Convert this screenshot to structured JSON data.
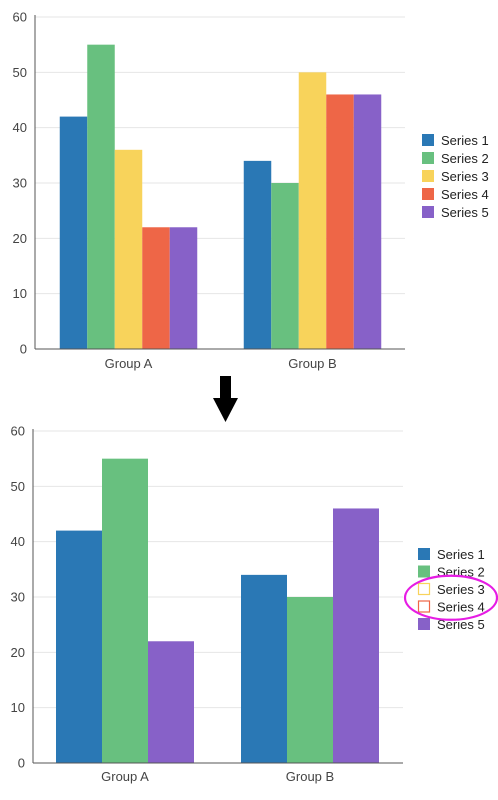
{
  "colors": {
    "series_1": "#2a78b5",
    "series_2": "#68c07f",
    "series_3": "#f8d35b",
    "series_4": "#ee6647",
    "series_5": "#8761c8",
    "highlight_ellipse": "#e61ce4",
    "arrow": "#000000"
  },
  "arrow_icon": "down-arrow-icon",
  "chart_data": [
    {
      "type": "bar",
      "categories": [
        "Group A",
        "Group B"
      ],
      "series": [
        {
          "name": "Series 1",
          "values": [
            42,
            34
          ],
          "visible": true,
          "color": "#2a78b5"
        },
        {
          "name": "Series 2",
          "values": [
            55,
            30
          ],
          "visible": true,
          "color": "#68c07f"
        },
        {
          "name": "Series 3",
          "values": [
            36,
            50
          ],
          "visible": true,
          "color": "#f8d35b"
        },
        {
          "name": "Series 4",
          "values": [
            22,
            46
          ],
          "visible": true,
          "color": "#ee6647"
        },
        {
          "name": "Series 5",
          "values": [
            22,
            46
          ],
          "visible": true,
          "color": "#8761c8"
        }
      ],
      "ylim": [
        0,
        60
      ],
      "yticks": [
        0,
        10,
        20,
        30,
        40,
        50,
        60
      ],
      "grid": true,
      "legend": "right"
    },
    {
      "type": "bar",
      "categories": [
        "Group A",
        "Group B"
      ],
      "series": [
        {
          "name": "Series 1",
          "values": [
            42,
            34
          ],
          "visible": true,
          "color": "#2a78b5"
        },
        {
          "name": "Series 2",
          "values": [
            55,
            30
          ],
          "visible": true,
          "color": "#68c07f"
        },
        {
          "name": "Series 3",
          "values": [
            36,
            50
          ],
          "visible": false,
          "color": "#f8d35b"
        },
        {
          "name": "Series 4",
          "values": [
            22,
            46
          ],
          "visible": false,
          "color": "#ee6647"
        },
        {
          "name": "Series 5",
          "values": [
            22,
            46
          ],
          "visible": true,
          "color": "#8761c8"
        }
      ],
      "ylim": [
        0,
        60
      ],
      "yticks": [
        0,
        10,
        20,
        30,
        40,
        50,
        60
      ],
      "grid": true,
      "legend": "right",
      "highlight": "hidden legend entries circled"
    }
  ]
}
